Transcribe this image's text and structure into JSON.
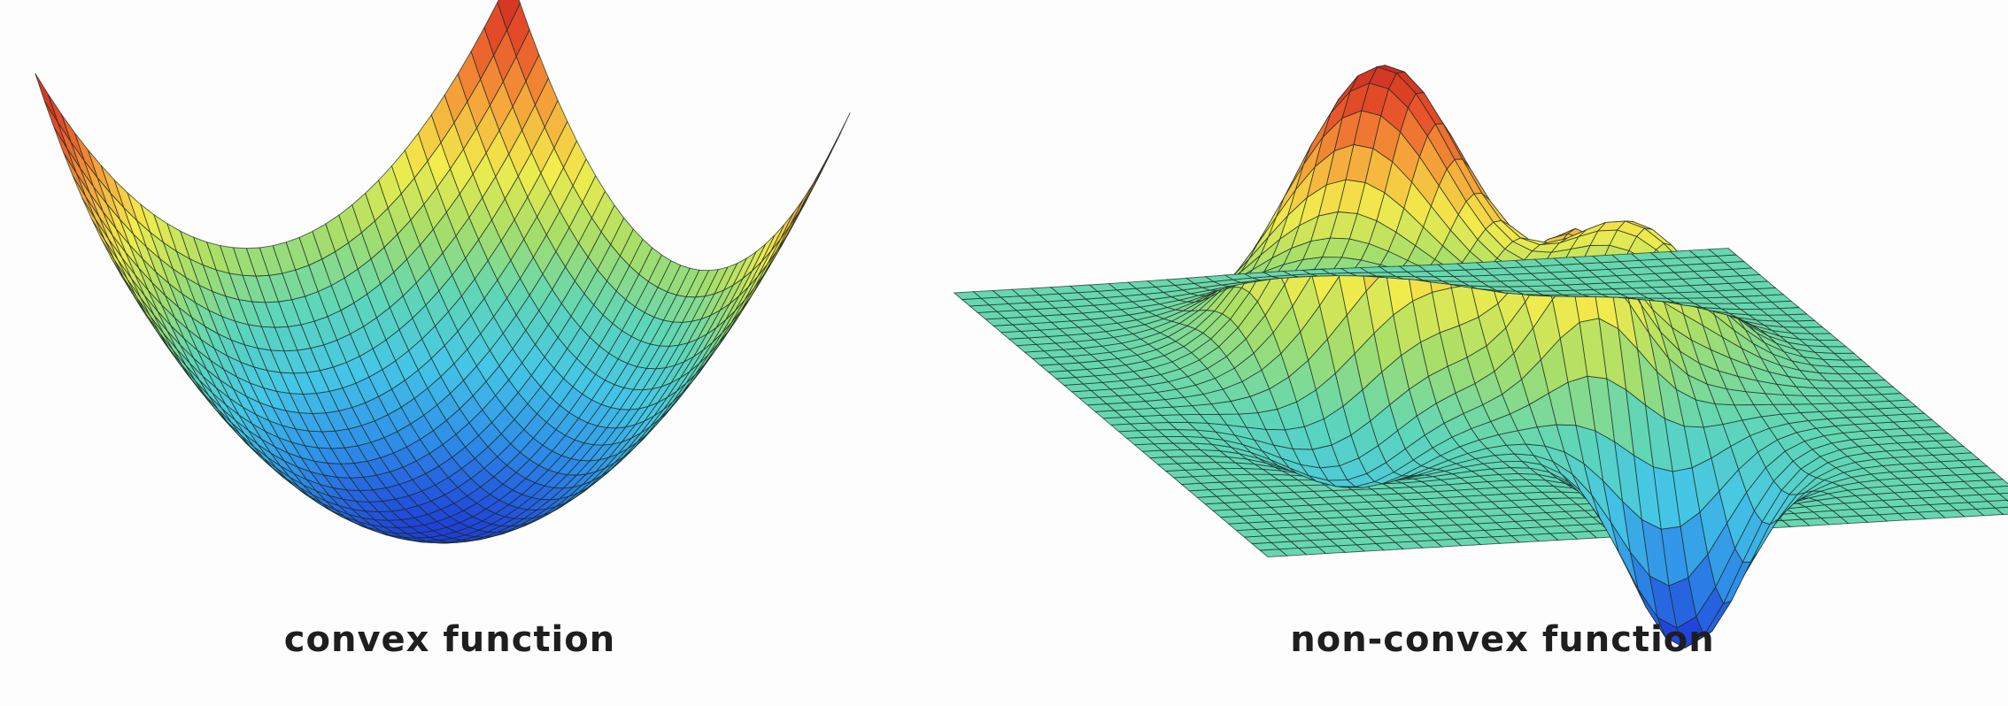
{
  "figures": [
    {
      "id": "convex",
      "caption": "convex function",
      "surface": "convex-bowl"
    },
    {
      "id": "nonconvex",
      "caption": "non-convex function",
      "surface": "multi-peak-landscape"
    }
  ],
  "colormap": [
    "#1f3fd8",
    "#2f8fe8",
    "#45c6e6",
    "#5fd6b8",
    "#a6de6a",
    "#f2ec4c",
    "#f6a43a",
    "#e8502a",
    "#c8281e"
  ],
  "mesh_color": "#1a2a22"
}
